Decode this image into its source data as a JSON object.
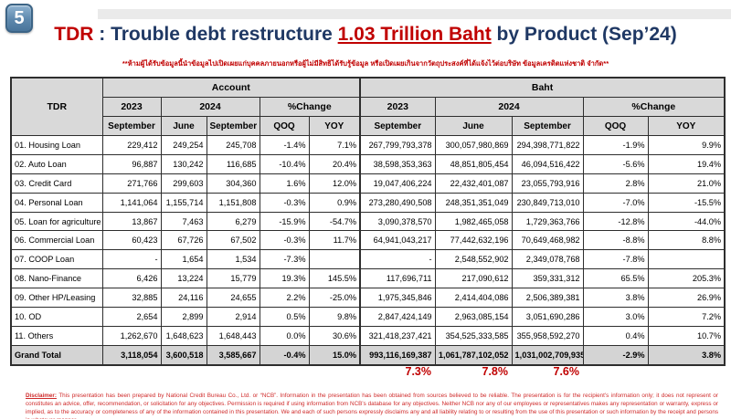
{
  "badge": "5",
  "title": {
    "prefix": "TDR",
    "separator": " : ",
    "middle": "Trouble debt restructure ",
    "highlight": "1.03 Trillion Baht",
    "suffix": " by Product (Sep’24)"
  },
  "subtitle": "**ห้ามผู้ได้รับข้อมูลนี้นำข้อมูลไปเปิดเผยแก่บุคคลภายนอกหรือผู้ไม่มีสิทธิได้รับรู้ข้อมูล หรือเปิดเผยเกินจากวัตถุประสงค์ที่ได้แจ้งไว้ต่อบริษัท ข้อมูลเครดิตแห่งชาติ จำกัด**",
  "table": {
    "corner_label": "TDR",
    "sections": [
      "Account",
      "Baht"
    ],
    "year_headers": [
      "2023",
      "2024",
      "%Change"
    ],
    "month_headers": [
      "September",
      "June",
      "September",
      "QOQ",
      "YOY"
    ],
    "rows": [
      {
        "label": "01. Housing Loan",
        "account": [
          "229,412",
          "249,254",
          "245,708",
          "-1.4%",
          "7.1%"
        ],
        "baht": [
          "267,799,793,378",
          "300,057,980,869",
          "294,398,771,822",
          "-1.9%",
          "9.9%"
        ]
      },
      {
        "label": "02. Auto Loan",
        "account": [
          "96,887",
          "130,242",
          "116,685",
          "-10.4%",
          "20.4%"
        ],
        "baht": [
          "38,598,353,363",
          "48,851,805,454",
          "46,094,516,422",
          "-5.6%",
          "19.4%"
        ]
      },
      {
        "label": "03. Credit Card",
        "account": [
          "271,766",
          "299,603",
          "304,360",
          "1.6%",
          "12.0%"
        ],
        "baht": [
          "19,047,406,224",
          "22,432,401,087",
          "23,055,793,916",
          "2.8%",
          "21.0%"
        ]
      },
      {
        "label": "04. Personal Loan",
        "account": [
          "1,141,064",
          "1,155,714",
          "1,151,808",
          "-0.3%",
          "0.9%"
        ],
        "baht": [
          "273,280,490,508",
          "248,351,351,049",
          "230,849,713,010",
          "-7.0%",
          "-15.5%"
        ]
      },
      {
        "label": "05. Loan for agriculture",
        "account": [
          "13,867",
          "7,463",
          "6,279",
          "-15.9%",
          "-54.7%"
        ],
        "baht": [
          "3,090,378,570",
          "1,982,465,058",
          "1,729,363,766",
          "-12.8%",
          "-44.0%"
        ]
      },
      {
        "label": "06. Commercial Loan",
        "account": [
          "60,423",
          "67,726",
          "67,502",
          "-0.3%",
          "11.7%"
        ],
        "baht": [
          "64,941,043,217",
          "77,442,632,196",
          "70,649,468,982",
          "-8.8%",
          "8.8%"
        ]
      },
      {
        "label": "07. COOP Loan",
        "account": [
          "-",
          "1,654",
          "1,534",
          "-7.3%",
          ""
        ],
        "baht": [
          "-",
          "2,548,552,902",
          "2,349,078,768",
          "-7.8%",
          ""
        ]
      },
      {
        "label": "08. Nano-Finance",
        "account": [
          "6,426",
          "13,224",
          "15,779",
          "19.3%",
          "145.5%"
        ],
        "baht": [
          "117,696,711",
          "217,090,612",
          "359,331,312",
          "65.5%",
          "205.3%"
        ]
      },
      {
        "label": "09. Other HP/Leasing",
        "account": [
          "32,885",
          "24,116",
          "24,655",
          "2.2%",
          "-25.0%"
        ],
        "baht": [
          "1,975,345,846",
          "2,414,404,086",
          "2,506,389,381",
          "3.8%",
          "26.9%"
        ]
      },
      {
        "label": "10. OD",
        "account": [
          "2,654",
          "2,899",
          "2,914",
          "0.5%",
          "9.8%"
        ],
        "baht": [
          "2,847,424,149",
          "2,963,085,154",
          "3,051,690,286",
          "3.0%",
          "7.2%"
        ]
      },
      {
        "label": "11. Others",
        "account": [
          "1,262,670",
          "1,648,623",
          "1,648,443",
          "0.0%",
          "30.6%"
        ],
        "baht": [
          "321,418,237,421",
          "354,525,333,585",
          "355,958,592,270",
          "0.4%",
          "10.7%"
        ]
      }
    ],
    "grand_total": {
      "label": "Grand Total",
      "account": [
        "3,118,054",
        "3,600,518",
        "3,585,667",
        "-0.4%",
        "15.0%"
      ],
      "baht": [
        "993,116,169,387",
        "1,061,787,102,052",
        "1,031,002,709,935",
        "-2.9%",
        "3.8%"
      ]
    }
  },
  "footer_percents": [
    "7.3%",
    "7.8%",
    "7.6%"
  ],
  "disclaimer": {
    "label": "Disclaimer:",
    "text": " This presentation has been prepared by National Credit Bureau Co., Ltd. or “NCB”. Information in the presentation has been obtained from sources believed to be reliable. The presentation is for the recipient’s information only; it does not represent or constitutes an advice, offer, recommendation, or solicitation for any objectives. Permission is required if using information from NCB’s database for any objectives. Neither NCB nor any of our employees or representatives makes any representation or warranty, express or implied, as to the accuracy or completeness of any of the information contained in this presentation. We and each of such persons expressly disclaims any and all liability relating to or resulting from the use of this presentation or such information by the receipt and persons in whatever manner."
  },
  "colors": {
    "accent_red": "#C00000",
    "title_navy": "#1F3864",
    "header_gray": "#D9D9D9",
    "total_gray": "#D4D4D4"
  }
}
